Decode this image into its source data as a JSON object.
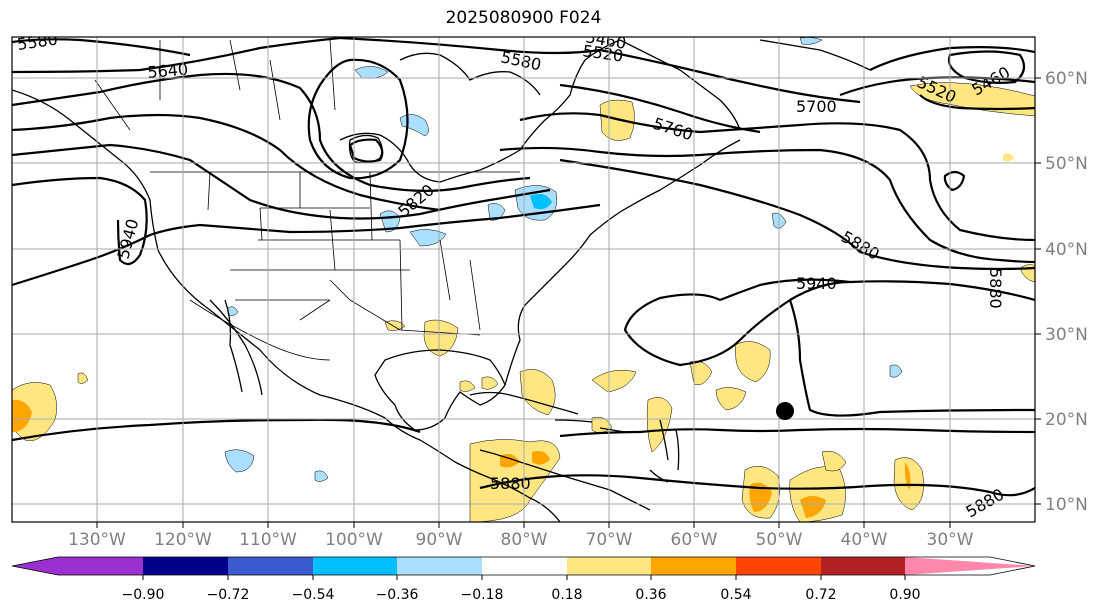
{
  "title": "2025080900 F024",
  "lon_labels": [
    "130°W",
    "120°W",
    "110°W",
    "100°W",
    "90°W",
    "80°W",
    "70°W",
    "60°W",
    "50°W",
    "40°W",
    "30°W"
  ],
  "lat_labels": [
    "60°N",
    "50°N",
    "40°N",
    "30°N",
    "20°N",
    "10°N"
  ],
  "contour_labels": [
    "5580",
    "5640",
    "5460",
    "5580",
    "5520",
    "5460",
    "5520",
    "5700",
    "5760",
    "5820",
    "5940",
    "5880",
    "5940",
    "5880",
    "5880",
    "5880"
  ],
  "colorbar": {
    "ticks": [
      "−0.90",
      "−0.72",
      "−0.54",
      "−0.36",
      "−0.18",
      "0.18",
      "0.36",
      "0.54",
      "0.72",
      "0.90"
    ],
    "colors": [
      "#9b30d0",
      "#00008b",
      "#3a5bd0",
      "#00bfff",
      "#aadfff",
      "#ffffff",
      "#ffe680",
      "#ffa500",
      "#ff4500",
      "#b22222",
      "#ff88aa"
    ]
  },
  "marker": "storm-position-dot"
}
